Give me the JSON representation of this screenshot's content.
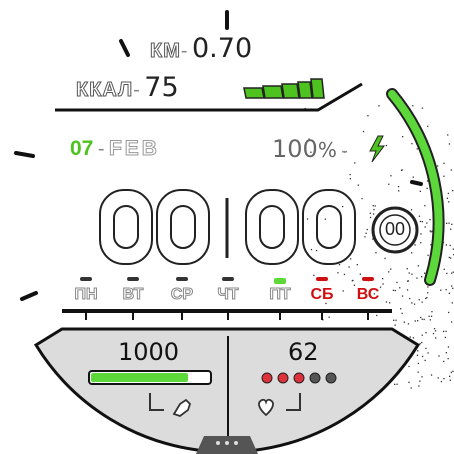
{
  "distance": {
    "label": "КМ",
    "sep": "-",
    "value": "0.70"
  },
  "calories": {
    "label": "ККАЛ",
    "sep": "-",
    "value": "75"
  },
  "date": {
    "day": "07",
    "sep": "-",
    "month": "FEB"
  },
  "battery": {
    "value": "100",
    "unit": "%",
    "sep": "-"
  },
  "time": {
    "hours": "00",
    "minutes": "00",
    "seconds": "00"
  },
  "weekdays": [
    {
      "label": "ПН",
      "weekend": false
    },
    {
      "label": "ВТ",
      "weekend": false
    },
    {
      "label": "СР",
      "weekend": false
    },
    {
      "label": "ЧТ",
      "weekend": false
    },
    {
      "label": "ПТ",
      "weekend": false
    },
    {
      "label": "СБ",
      "weekend": true
    },
    {
      "label": "ВС",
      "weekend": true
    }
  ],
  "active_day_index": 4,
  "steps": {
    "value": "1000",
    "progress": 0.82
  },
  "heart": {
    "value": "62",
    "dots_total": 5,
    "dots_filled": 3
  },
  "colors": {
    "accent_green": "#4ec21e",
    "weekend_red": "#d01010",
    "heart_dot_red": "#e0303a",
    "panel_gray": "#dcdcdc"
  },
  "icons": [
    "bolt-icon",
    "shoe-icon",
    "heart-icon"
  ]
}
